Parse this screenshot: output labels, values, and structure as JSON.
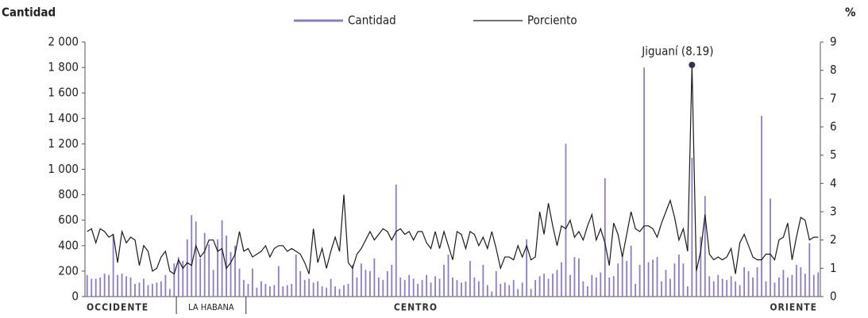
{
  "chart_data": {
    "type": "bar_line",
    "y_title": "Cantidad",
    "y2_title": "%",
    "ylim": [
      0,
      2000
    ],
    "yticks": [
      0,
      200,
      400,
      600,
      800,
      {
        "value": 1000,
        "label": "1 000"
      },
      {
        "value": 1200,
        "label": "1 200"
      },
      {
        "value": 1400,
        "label": "1 400"
      },
      {
        "value": 1600,
        "label": "1 600"
      },
      {
        "value": 1800,
        "label": "1 800"
      },
      {
        "value": 2000,
        "label": "2 000"
      }
    ],
    "y2lim": [
      0,
      9
    ],
    "y2ticks": [
      0,
      1,
      2,
      3,
      4,
      5,
      6,
      7,
      8,
      9
    ],
    "regions": [
      {
        "name": "OCCIDENTE",
        "count": 21
      },
      {
        "name": "LA HABANA",
        "count": 16
      },
      {
        "name": "CENTRO",
        "count": 78
      },
      {
        "name": "ORIENTE",
        "count": 54
      }
    ],
    "series": [
      {
        "name": "Cantidad",
        "type": "bar",
        "color": "#8e7cc3",
        "values": [
          170,
          140,
          140,
          150,
          180,
          170,
          480,
          170,
          180,
          160,
          150,
          100,
          110,
          140,
          90,
          100,
          110,
          120,
          170,
          60,
          260,
          310,
          280,
          450,
          640,
          590,
          300,
          500,
          410,
          210,
          450,
          600,
          480,
          350,
          400,
          220,
          130,
          100,
          220,
          70,
          120,
          100,
          80,
          90,
          240,
          80,
          90,
          100,
          330,
          200,
          130,
          140,
          110,
          120,
          80,
          70,
          140,
          80,
          60,
          90,
          100,
          250,
          150,
          260,
          210,
          200,
          300,
          150,
          130,
          200,
          250,
          880,
          150,
          130,
          170,
          140,
          100,
          130,
          170,
          110,
          160,
          140,
          250,
          330,
          150,
          130,
          110,
          120,
          280,
          150,
          120,
          250,
          90,
          40,
          200,
          100,
          110,
          90,
          130,
          60,
          110,
          450,
          60,
          130,
          160,
          180,
          140,
          180,
          210,
          270,
          1200,
          170,
          310,
          300,
          120,
          80,
          170,
          150,
          190,
          930,
          150,
          160,
          260,
          340,
          280,
          400,
          100,
          250,
          1800,
          270,
          290,
          310,
          120,
          210,
          140,
          260,
          330,
          260,
          80,
          1090,
          200,
          470,
          790,
          160,
          120,
          170,
          140,
          130,
          160,
          120,
          90,
          230,
          200,
          150,
          230,
          1420,
          120,
          770,
          110,
          150,
          210,
          150,
          170,
          250,
          230,
          180,
          420,
          170,
          190
        ]
      },
      {
        "name": "Porciento",
        "type": "line",
        "axis": "y2",
        "color": "#1a1a1a",
        "values": [
          2.3,
          2.4,
          1.9,
          2.4,
          2.3,
          2.1,
          2.2,
          1.2,
          2.3,
          1.9,
          2.1,
          2.0,
          1.1,
          1.8,
          1.6,
          0.9,
          1.0,
          1.4,
          1.6,
          0.9,
          0.8,
          1.3,
          1.0,
          1.2,
          1.1,
          1.8,
          1.4,
          1.6,
          2.0,
          2.0,
          1.6,
          1.7,
          1.0,
          1.2,
          1.5,
          2.3,
          1.6,
          1.7,
          1.4,
          1.5,
          1.6,
          1.8,
          1.4,
          1.7,
          1.8,
          1.8,
          1.6,
          1.7,
          1.6,
          1.5,
          1.2,
          0.8,
          2.4,
          1.2,
          1.7,
          1.0,
          1.6,
          2.1,
          1.6,
          3.6,
          1.2,
          1.0,
          1.5,
          1.7,
          2.0,
          2.3,
          2.0,
          2.2,
          2.4,
          2.3,
          2.0,
          2.3,
          2.4,
          2.2,
          2.3,
          2.0,
          2.3,
          2.3,
          1.9,
          1.7,
          2.3,
          1.7,
          2.3,
          1.8,
          1.3,
          2.3,
          2.2,
          1.7,
          2.3,
          2.2,
          1.8,
          2.1,
          1.7,
          2.3,
          1.7,
          1.0,
          1.4,
          1.4,
          1.3,
          1.8,
          1.4,
          1.8,
          1.3,
          1.4,
          3.0,
          2.2,
          3.3,
          2.5,
          1.8,
          2.5,
          2.4,
          2.7,
          2.1,
          2.3,
          2.0,
          2.5,
          2.9,
          2.0,
          2.4,
          1.9,
          1.1,
          2.6,
          2.2,
          1.4,
          2.2,
          3.0,
          2.4,
          2.3,
          2.5,
          2.5,
          2.4,
          2.1,
          2.6,
          3.0,
          3.4,
          2.8,
          2.0,
          2.4,
          1.6,
          8.19,
          0.9,
          1.6,
          2.9,
          1.5,
          1.3,
          1.4,
          1.3,
          1.4,
          1.7,
          0.8,
          1.9,
          2.2,
          1.8,
          1.4,
          1.3,
          1.3,
          1.5,
          1.5,
          1.3,
          2.0,
          2.1,
          2.6,
          1.3,
          2.1,
          2.8,
          2.7,
          2.0,
          2.1,
          2.1
        ]
      }
    ],
    "annotations": [
      {
        "text": "Jiguaní (8.19)",
        "series": 1,
        "value": 8.19
      }
    ]
  }
}
